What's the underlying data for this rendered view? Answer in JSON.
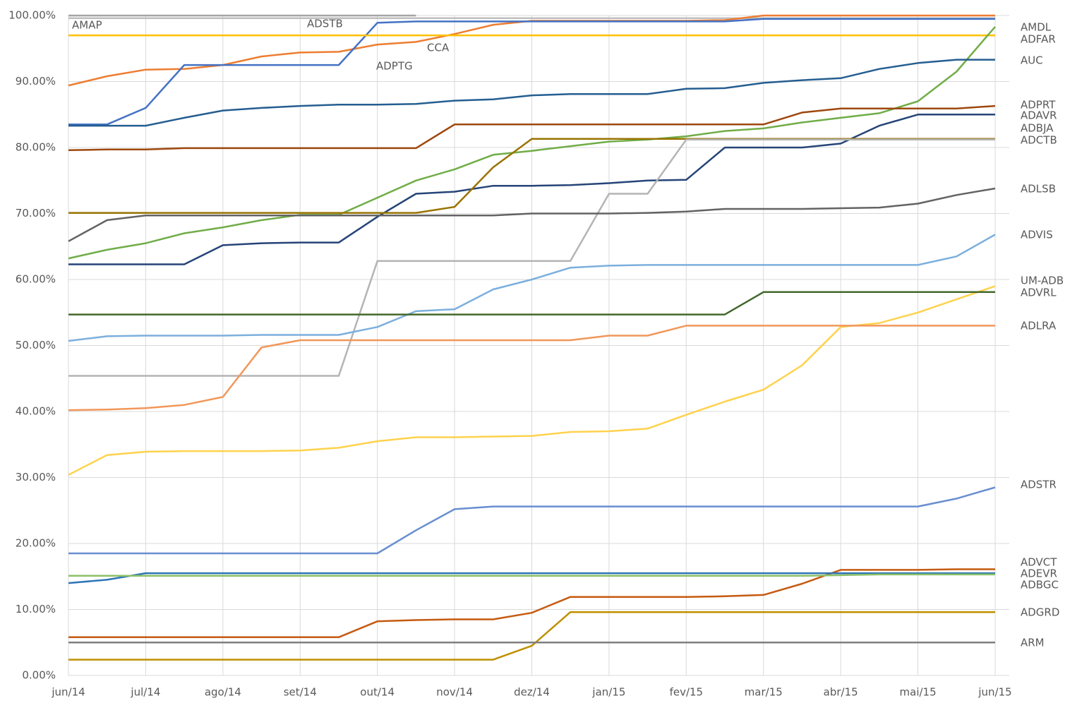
{
  "chart_data": {
    "type": "line",
    "categories": [
      "jun/14",
      null,
      "jul/14",
      null,
      "ago/14",
      null,
      "set/14",
      null,
      "out/14",
      null,
      "nov/14",
      null,
      "dez/14",
      null,
      "jan/15",
      null,
      "fev/15",
      null,
      "mar/15",
      null,
      "abr/15",
      null,
      "mai/15",
      null,
      "jun/15"
    ],
    "ylim": [
      0,
      100
    ],
    "yticks": [
      {
        "value": 0,
        "label": "0.00%"
      },
      {
        "value": 10,
        "label": "10.00%"
      },
      {
        "value": 20,
        "label": "20.00%"
      },
      {
        "value": 30,
        "label": "30.00%"
      },
      {
        "value": 40,
        "label": "40.00%"
      },
      {
        "value": 50,
        "label": "50.00%"
      },
      {
        "value": 60,
        "label": "60.00%"
      },
      {
        "value": 70,
        "label": "70.00%"
      },
      {
        "value": 80,
        "label": "80.00%"
      },
      {
        "value": 90,
        "label": "90.00%"
      },
      {
        "value": 100,
        "label": "100.00%"
      }
    ],
    "grid": true,
    "series": [
      {
        "name": "AMAP",
        "color": "#a5a5a5",
        "values": [
          100,
          100,
          100,
          100,
          100,
          100,
          100,
          100,
          100,
          100,
          null,
          null,
          null,
          null,
          null,
          null,
          null,
          null,
          null,
          null,
          null,
          null,
          null,
          null,
          null
        ]
      },
      {
        "name": "ADSTB",
        "color": "#bfbfbf",
        "values": [
          99.6,
          99.6,
          99.6,
          99.6,
          99.6,
          99.6,
          99.6,
          99.6,
          99.6,
          99.6,
          99.6,
          99.6,
          99.6,
          99.6,
          99.6,
          99.6,
          99.6,
          99.6,
          99.6,
          99.6,
          99.6,
          99.6,
          99.6,
          99.6,
          99.6
        ]
      },
      {
        "name": "CCA",
        "color": "#ed7d31",
        "values": [
          89.4,
          90.8,
          91.8,
          91.9,
          92.5,
          93.8,
          94.4,
          94.5,
          95.6,
          96.0,
          97.2,
          98.6,
          99.2,
          99.2,
          99.2,
          99.2,
          99.2,
          99.3,
          100,
          100,
          100,
          100,
          100,
          100,
          100
        ]
      },
      {
        "name": "ADPTG",
        "color": "#4472c4",
        "values": [
          83.5,
          83.5,
          86.0,
          92.5,
          92.5,
          92.5,
          92.5,
          92.5,
          98.9,
          99.1,
          99.1,
          99.1,
          99.1,
          99.1,
          99.1,
          99.1,
          99.1,
          99.1,
          99.5,
          99.5,
          99.5,
          99.5,
          99.5,
          99.5,
          99.5
        ]
      },
      {
        "name": "ADFAR",
        "color": "#ffc000",
        "values": [
          97,
          97,
          97,
          97,
          97,
          97,
          97,
          97,
          97,
          97,
          97,
          97,
          97,
          97,
          97,
          97,
          97,
          97,
          97,
          97,
          97,
          97,
          97,
          97,
          97
        ]
      },
      {
        "name": "AMDL",
        "color": "#70ad47",
        "values": [
          63.2,
          64.5,
          65.5,
          67.0,
          67.9,
          69.0,
          69.8,
          69.8,
          72.4,
          75.0,
          76.7,
          78.9,
          79.5,
          80.2,
          80.9,
          81.2,
          81.7,
          82.5,
          82.9,
          83.8,
          84.5,
          85.2,
          87.0,
          91.5,
          98.3
        ]
      },
      {
        "name": "AUC",
        "color": "#255e91",
        "values": [
          83.3,
          83.3,
          83.3,
          84.5,
          85.6,
          86.0,
          86.3,
          86.5,
          86.5,
          86.6,
          87.1,
          87.3,
          87.9,
          88.1,
          88.1,
          88.1,
          88.9,
          89.0,
          89.8,
          90.2,
          90.5,
          91.9,
          92.8,
          93.3,
          93.3
        ]
      },
      {
        "name": "ADPRT",
        "color": "#9e480e",
        "values": [
          79.6,
          79.7,
          79.7,
          79.9,
          79.9,
          79.9,
          79.9,
          79.9,
          79.9,
          79.9,
          83.5,
          83.5,
          83.5,
          83.5,
          83.5,
          83.5,
          83.5,
          83.5,
          83.5,
          85.3,
          85.9,
          85.9,
          85.9,
          85.9,
          86.3
        ]
      },
      {
        "name": "ADAVR",
        "color": "#264478",
        "values": [
          62.3,
          62.3,
          62.3,
          62.3,
          65.2,
          65.5,
          65.6,
          65.6,
          69.5,
          73.0,
          73.3,
          74.2,
          74.2,
          74.3,
          74.6,
          75.0,
          75.1,
          80.0,
          80.0,
          80.0,
          80.6,
          83.3,
          85.0,
          85.0,
          85.0
        ]
      },
      {
        "name": "ADBJA",
        "color": "#997300",
        "values": [
          70.1,
          70.1,
          70.1,
          70.1,
          70.1,
          70.1,
          70.1,
          70.1,
          70.1,
          70.1,
          71.0,
          77.0,
          81.3,
          81.3,
          81.3,
          81.3,
          81.3,
          81.3,
          81.3,
          81.3,
          81.3,
          81.3,
          81.3,
          81.3,
          81.3
        ]
      },
      {
        "name": "ADCTB",
        "color": "#b4b4b4",
        "values": [
          45.4,
          45.4,
          45.4,
          45.4,
          45.4,
          45.4,
          45.4,
          45.4,
          62.8,
          62.8,
          62.8,
          62.8,
          62.8,
          62.8,
          73.0,
          73.0,
          81.2,
          81.2,
          81.2,
          81.2,
          81.2,
          81.2,
          81.2,
          81.2,
          81.2
        ]
      },
      {
        "name": "ADLSB",
        "color": "#636363",
        "values": [
          65.8,
          69.0,
          69.7,
          69.7,
          69.7,
          69.7,
          69.7,
          69.7,
          69.7,
          69.7,
          69.7,
          69.7,
          70.0,
          70.0,
          70.0,
          70.1,
          70.3,
          70.7,
          70.7,
          70.7,
          70.8,
          70.9,
          71.5,
          72.8,
          73.8
        ]
      },
      {
        "name": "ADVIS",
        "color": "#7cafdd",
        "values": [
          50.7,
          51.4,
          51.5,
          51.5,
          51.5,
          51.6,
          51.6,
          51.6,
          52.8,
          55.2,
          55.5,
          58.5,
          60.0,
          61.8,
          62.1,
          62.2,
          62.2,
          62.2,
          62.2,
          62.2,
          62.2,
          62.2,
          62.2,
          63.5,
          66.8
        ]
      },
      {
        "name": "UM-ADB",
        "color": "#ffd24d",
        "values": [
          30.4,
          33.4,
          33.9,
          34.0,
          34.0,
          34.0,
          34.1,
          34.5,
          35.5,
          36.1,
          36.1,
          36.2,
          36.3,
          36.9,
          37.0,
          37.4,
          39.5,
          41.5,
          43.3,
          47.0,
          52.8,
          53.4,
          55.0,
          57.0,
          59.0
        ]
      },
      {
        "name": "ADVRL",
        "color": "#43682b",
        "values": [
          54.7,
          54.7,
          54.7,
          54.7,
          54.7,
          54.7,
          54.7,
          54.7,
          54.7,
          54.7,
          54.7,
          54.7,
          54.7,
          54.7,
          54.7,
          54.7,
          54.7,
          54.7,
          58.1,
          58.1,
          58.1,
          58.1,
          58.1,
          58.1,
          58.1
        ]
      },
      {
        "name": "ADLRA",
        "color": "#f1975a",
        "values": [
          40.2,
          40.3,
          40.5,
          41.0,
          42.2,
          49.7,
          50.8,
          50.8,
          50.8,
          50.8,
          50.8,
          50.8,
          50.8,
          50.8,
          51.5,
          51.5,
          53.0,
          53.0,
          53.0,
          53.0,
          53.0,
          53.0,
          53.0,
          53.0,
          53.0
        ]
      },
      {
        "name": "ADSTR",
        "color": "#698ed0",
        "values": [
          18.5,
          18.5,
          18.5,
          18.5,
          18.5,
          18.5,
          18.5,
          18.5,
          18.5,
          22.0,
          25.2,
          25.6,
          25.6,
          25.6,
          25.6,
          25.6,
          25.6,
          25.6,
          25.6,
          25.6,
          25.6,
          25.6,
          25.6,
          26.8,
          28.5
        ]
      },
      {
        "name": "ADVCT",
        "color": "#c55a11",
        "values": [
          5.8,
          5.8,
          5.8,
          5.8,
          5.8,
          5.8,
          5.8,
          5.8,
          8.2,
          8.4,
          8.5,
          8.5,
          9.5,
          11.9,
          11.9,
          11.9,
          11.9,
          12.0,
          12.2,
          13.9,
          16.0,
          16.0,
          16.0,
          16.1,
          16.1
        ]
      },
      {
        "name": "ADEVR",
        "color": "#2e75b6",
        "values": [
          14.0,
          14.5,
          15.5,
          15.5,
          15.5,
          15.5,
          15.5,
          15.5,
          15.5,
          15.5,
          15.5,
          15.5,
          15.5,
          15.5,
          15.5,
          15.5,
          15.5,
          15.5,
          15.5,
          15.5,
          15.5,
          15.5,
          15.5,
          15.5,
          15.5
        ]
      },
      {
        "name": "ADBGC",
        "color": "#8cc168",
        "values": [
          15.1,
          15.1,
          15.1,
          15.1,
          15.1,
          15.1,
          15.1,
          15.1,
          15.1,
          15.1,
          15.1,
          15.1,
          15.1,
          15.1,
          15.1,
          15.1,
          15.1,
          15.1,
          15.1,
          15.1,
          15.2,
          15.3,
          15.3,
          15.3,
          15.3
        ]
      },
      {
        "name": "ADGRD",
        "color": "#bf9000",
        "values": [
          2.4,
          2.4,
          2.4,
          2.4,
          2.4,
          2.4,
          2.4,
          2.4,
          2.4,
          2.4,
          2.4,
          2.4,
          4.5,
          9.6,
          9.6,
          9.6,
          9.6,
          9.6,
          9.6,
          9.6,
          9.6,
          9.6,
          9.6,
          9.6,
          9.6
        ]
      },
      {
        "name": "ARM",
        "color": "#7f7f7f",
        "values": [
          5,
          5,
          5,
          5,
          5,
          5,
          5,
          5,
          5,
          5,
          5,
          5,
          5,
          5,
          5,
          5,
          5,
          5,
          5,
          5,
          5,
          5,
          5,
          5,
          5
        ]
      }
    ]
  }
}
